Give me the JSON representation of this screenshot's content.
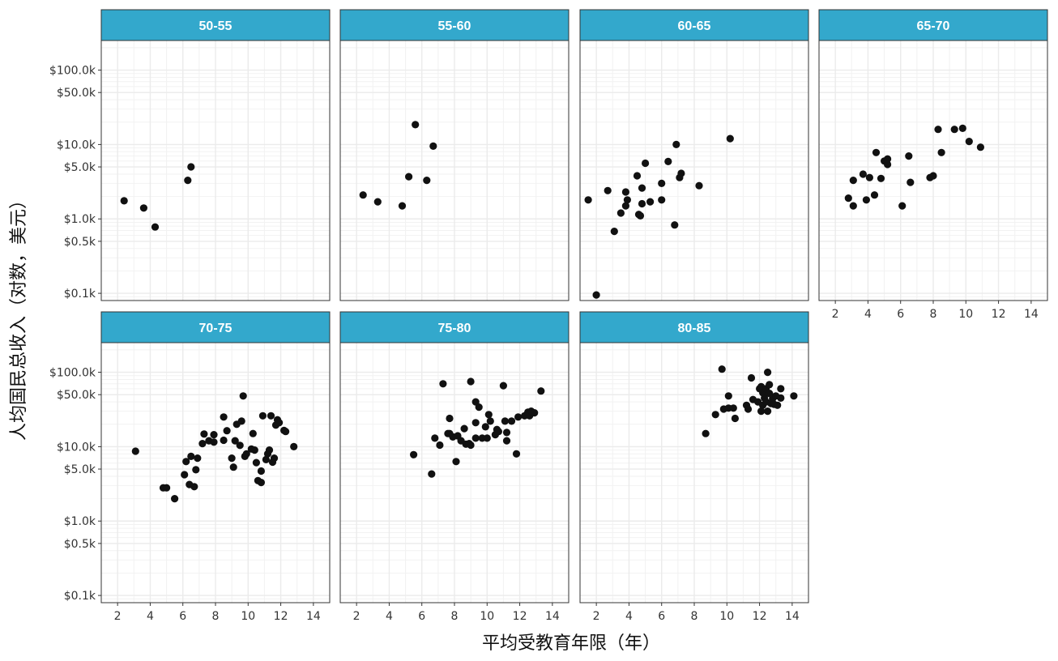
{
  "chart_data": {
    "type": "scatter",
    "facet_by": "age-range",
    "xlabel": "平均受教育年限（年）",
    "ylabel": "人均国民总收入（对数，美元）",
    "x_scale": "linear",
    "y_scale": "log",
    "xlim": [
      1,
      15
    ],
    "ylim": [
      0.08,
      250
    ],
    "x_ticks": [
      2,
      4,
      6,
      8,
      10,
      12,
      14
    ],
    "x_tick_labels": [
      "2",
      "4",
      "6",
      "8",
      "10",
      "12",
      "14"
    ],
    "y_ticks": [
      0.1,
      0.5,
      1,
      5,
      10,
      50,
      100
    ],
    "y_tick_labels": [
      "$0.1k",
      "$0.5k",
      "$1.0k",
      "$5.0k",
      "$10.0k",
      "$50.0k",
      "$100.0k"
    ],
    "grid": true,
    "colors": {
      "strip": "#33a8cc",
      "point": "#111111",
      "grid": "#ebebeb",
      "border": "#333333"
    },
    "facets": [
      {
        "label": "50-55",
        "points": [
          [
            2.4,
            1.75
          ],
          [
            3.6,
            1.4
          ],
          [
            4.3,
            0.78
          ],
          [
            6.3,
            3.3
          ],
          [
            6.5,
            5.0
          ]
        ]
      },
      {
        "label": "55-60",
        "points": [
          [
            2.4,
            2.1
          ],
          [
            3.3,
            1.7
          ],
          [
            4.8,
            1.5
          ],
          [
            5.2,
            3.7
          ],
          [
            5.6,
            18.5
          ],
          [
            6.3,
            3.3
          ],
          [
            6.7,
            9.5
          ]
        ]
      },
      {
        "label": "60-65",
        "points": [
          [
            1.5,
            1.8
          ],
          [
            2.0,
            0.095
          ],
          [
            2.7,
            2.4
          ],
          [
            3.1,
            0.68
          ],
          [
            3.5,
            1.2
          ],
          [
            3.8,
            1.5
          ],
          [
            3.8,
            2.3
          ],
          [
            3.9,
            1.8
          ],
          [
            4.5,
            3.8
          ],
          [
            4.6,
            1.15
          ],
          [
            4.7,
            1.1
          ],
          [
            4.8,
            1.6
          ],
          [
            4.8,
            2.6
          ],
          [
            5.0,
            5.6
          ],
          [
            5.3,
            1.7
          ],
          [
            6.0,
            3.0
          ],
          [
            6.0,
            1.8
          ],
          [
            6.4,
            5.9
          ],
          [
            6.8,
            0.83
          ],
          [
            6.9,
            10.0
          ],
          [
            7.1,
            3.6
          ],
          [
            7.2,
            4.1
          ],
          [
            8.3,
            2.8
          ],
          [
            10.2,
            12.0
          ]
        ]
      },
      {
        "label": "65-70",
        "points": [
          [
            2.8,
            1.9
          ],
          [
            3.1,
            1.5
          ],
          [
            3.1,
            3.3
          ],
          [
            3.7,
            4.0
          ],
          [
            3.9,
            1.8
          ],
          [
            4.1,
            3.6
          ],
          [
            4.4,
            2.1
          ],
          [
            4.5,
            7.8
          ],
          [
            4.8,
            3.5
          ],
          [
            5.0,
            6.0
          ],
          [
            5.2,
            5.4
          ],
          [
            5.2,
            6.4
          ],
          [
            6.1,
            1.5
          ],
          [
            6.5,
            7.0
          ],
          [
            6.6,
            3.1
          ],
          [
            7.8,
            3.6
          ],
          [
            8.0,
            3.8
          ],
          [
            8.3,
            16.0
          ],
          [
            8.5,
            7.8
          ],
          [
            9.3,
            16.0
          ],
          [
            9.8,
            16.5
          ],
          [
            10.2,
            11.0
          ],
          [
            10.9,
            9.2
          ]
        ]
      },
      {
        "label": "70-75",
        "points": [
          [
            3.1,
            8.7
          ],
          [
            4.8,
            2.8
          ],
          [
            5.0,
            2.8
          ],
          [
            5.5,
            2.0
          ],
          [
            6.1,
            4.2
          ],
          [
            6.2,
            6.3
          ],
          [
            6.4,
            3.1
          ],
          [
            6.5,
            7.4
          ],
          [
            6.7,
            2.9
          ],
          [
            6.8,
            4.9
          ],
          [
            6.9,
            7.0
          ],
          [
            7.2,
            11.0
          ],
          [
            7.3,
            14.8
          ],
          [
            7.6,
            12.0
          ],
          [
            7.9,
            11.5
          ],
          [
            7.9,
            14.5
          ],
          [
            8.5,
            25.0
          ],
          [
            8.5,
            12.2
          ],
          [
            8.7,
            16.4
          ],
          [
            9.0,
            7.0
          ],
          [
            9.1,
            5.3
          ],
          [
            9.2,
            12.0
          ],
          [
            9.3,
            20.0
          ],
          [
            9.5,
            10.4
          ],
          [
            9.6,
            22.0
          ],
          [
            9.7,
            48.0
          ],
          [
            9.8,
            7.4
          ],
          [
            9.9,
            8.0
          ],
          [
            10.2,
            9.3
          ],
          [
            10.3,
            15.0
          ],
          [
            10.4,
            9.0
          ],
          [
            10.5,
            6.1
          ],
          [
            10.6,
            3.5
          ],
          [
            10.8,
            3.3
          ],
          [
            10.8,
            4.7
          ],
          [
            10.9,
            26.0
          ],
          [
            11.1,
            6.7
          ],
          [
            11.2,
            8.0
          ],
          [
            11.3,
            9.0
          ],
          [
            11.4,
            26.0
          ],
          [
            11.5,
            6.2
          ],
          [
            11.6,
            7.0
          ],
          [
            11.7,
            19.5
          ],
          [
            11.8,
            23.0
          ],
          [
            11.9,
            21.0
          ],
          [
            12.2,
            16.5
          ],
          [
            12.3,
            16.0
          ],
          [
            12.8,
            10.0
          ]
        ]
      },
      {
        "label": "75-80",
        "points": [
          [
            5.5,
            7.8
          ],
          [
            6.6,
            4.3
          ],
          [
            6.8,
            13.0
          ],
          [
            7.1,
            10.5
          ],
          [
            7.3,
            70.0
          ],
          [
            7.6,
            15.0
          ],
          [
            7.7,
            24.0
          ],
          [
            7.7,
            15.0
          ],
          [
            7.9,
            13.5
          ],
          [
            8.1,
            6.3
          ],
          [
            8.2,
            14.0
          ],
          [
            8.4,
            12.0
          ],
          [
            8.6,
            17.5
          ],
          [
            8.7,
            10.8
          ],
          [
            8.9,
            11.0
          ],
          [
            9.0,
            10.5
          ],
          [
            9.0,
            75.0
          ],
          [
            9.3,
            13.0
          ],
          [
            9.3,
            21.0
          ],
          [
            9.3,
            40.0
          ],
          [
            9.5,
            34.0
          ],
          [
            9.7,
            13.0
          ],
          [
            9.9,
            18.5
          ],
          [
            10.0,
            13.0
          ],
          [
            10.1,
            27.0
          ],
          [
            10.2,
            22.0
          ],
          [
            10.5,
            14.5
          ],
          [
            10.6,
            17.0
          ],
          [
            10.7,
            16.0
          ],
          [
            11.0,
            66.0
          ],
          [
            11.1,
            22.0
          ],
          [
            11.2,
            12.0
          ],
          [
            11.2,
            15.5
          ],
          [
            11.5,
            22.0
          ],
          [
            11.8,
            8.0
          ],
          [
            11.9,
            25.0
          ],
          [
            12.3,
            26.0
          ],
          [
            12.5,
            29.0
          ],
          [
            12.6,
            26.0
          ],
          [
            12.7,
            30.0
          ],
          [
            12.9,
            28.5
          ],
          [
            13.3,
            56.0
          ]
        ]
      },
      {
        "label": "80-85",
        "points": [
          [
            8.7,
            15.0
          ],
          [
            9.3,
            27.0
          ],
          [
            9.7,
            110.0
          ],
          [
            9.8,
            32.0
          ],
          [
            10.1,
            33.0
          ],
          [
            10.1,
            48.0
          ],
          [
            10.4,
            33.0
          ],
          [
            10.5,
            24.0
          ],
          [
            11.2,
            36.0
          ],
          [
            11.3,
            32.0
          ],
          [
            11.5,
            84.0
          ],
          [
            11.6,
            43.0
          ],
          [
            11.9,
            40.0
          ],
          [
            12.0,
            60.0
          ],
          [
            12.1,
            64.0
          ],
          [
            12.1,
            30.0
          ],
          [
            12.2,
            53.0
          ],
          [
            12.2,
            36.0
          ],
          [
            12.3,
            45.0
          ],
          [
            12.4,
            40.0
          ],
          [
            12.4,
            60.0
          ],
          [
            12.5,
            100.0
          ],
          [
            12.5,
            30.0
          ],
          [
            12.6,
            52.0
          ],
          [
            12.6,
            68.0
          ],
          [
            12.7,
            38.0
          ],
          [
            12.8,
            44.0
          ],
          [
            12.9,
            37.0
          ],
          [
            13.0,
            48.0
          ],
          [
            13.1,
            36.0
          ],
          [
            13.3,
            45.0
          ],
          [
            13.3,
            60.0
          ],
          [
            14.1,
            48.0
          ]
        ]
      }
    ]
  }
}
